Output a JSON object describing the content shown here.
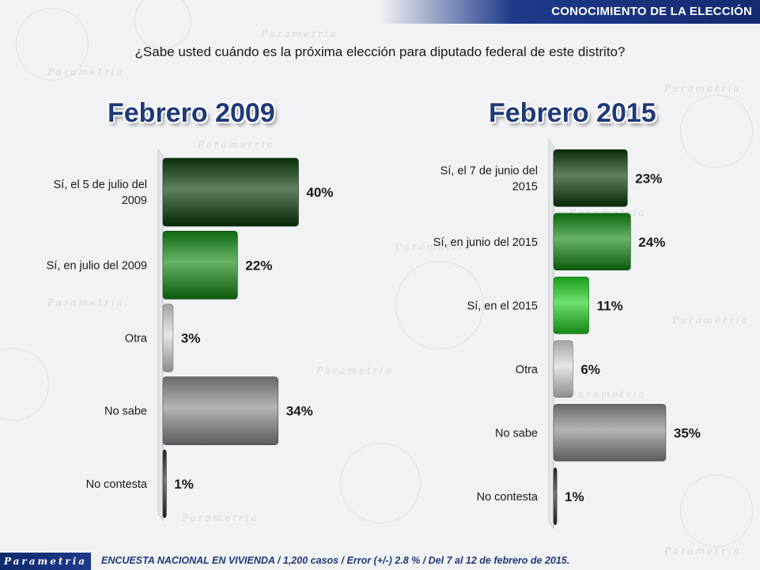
{
  "header": {
    "title": "CONOCIMIENTO DE LA ELECCIÓN"
  },
  "question": "¿Sabe usted cuándo es la próxima elección para diputado federal de este distrito?",
  "watermark_text": "Parametria",
  "footer": {
    "logo": "Parametria",
    "note": "ENCUESTA NACIONAL EN VIVIENDA / 1,200 casos / Error (+/-) 2.8 % / Del 7 al 12 de febrero de 2015."
  },
  "colors": {
    "dark_green": "#0b3d0b",
    "mid_green": "#138a13",
    "bright_green": "#22d022",
    "light_gray": "#d9d9d9",
    "gray": "#8c8c8c",
    "dark": "#333333",
    "title_blue": "#1f3a7a",
    "header_blue": "#1e3a8a"
  },
  "chart_data": [
    {
      "type": "bar",
      "orientation": "horizontal",
      "title": "Febrero 2009",
      "categories": [
        "Sí, el 5 de julio del 2009",
        "Sí, en julio del 2009",
        "Otra",
        "No sabe",
        "No contesta"
      ],
      "label_lines": [
        [
          "Sí, el 5 de julio del",
          "2009"
        ],
        [
          "Sí, en julio del 2009"
        ],
        [
          "Otra"
        ],
        [
          "No sabe"
        ],
        [
          "No contesta"
        ]
      ],
      "values": [
        40,
        22,
        3,
        34,
        1
      ],
      "value_labels": [
        "40%",
        "22%",
        "3%",
        "34%",
        "1%"
      ],
      "bar_colors": [
        "#0b3d0b",
        "#138a13",
        "#d9d9d9",
        "#8c8c8c",
        "#333333"
      ],
      "xlim": [
        0,
        42
      ],
      "grid": false
    },
    {
      "type": "bar",
      "orientation": "horizontal",
      "title": "Febrero 2015",
      "categories": [
        "Sí, el 7 de junio del 2015",
        "Sí, en junio del 2015",
        "Sí, en el 2015",
        "Otra",
        "No sabe",
        "No contesta"
      ],
      "label_lines": [
        [
          "Sí, el 7 de junio del",
          "2015"
        ],
        [
          "Sí, en junio del 2015"
        ],
        [
          "Sí, en el 2015"
        ],
        [
          "Otra"
        ],
        [
          "No sabe"
        ],
        [
          "No contesta"
        ]
      ],
      "values": [
        23,
        24,
        11,
        6,
        35,
        1
      ],
      "value_labels": [
        "23%",
        "24%",
        "11%",
        "6%",
        "35%",
        "1%"
      ],
      "bar_colors": [
        "#0b3d0b",
        "#138a13",
        "#22d022",
        "#d9d9d9",
        "#8c8c8c",
        "#333333"
      ],
      "xlim": [
        0,
        37
      ],
      "grid": false
    }
  ]
}
